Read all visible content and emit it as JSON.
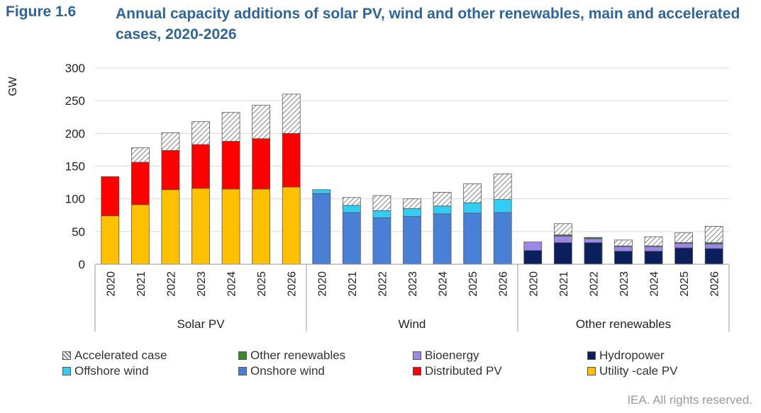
{
  "figure": {
    "label": "Figure 1.6",
    "title": "Annual capacity additions of solar PV, wind and other renewables, main and accelerated cases, 2020-2026"
  },
  "credit": "IEA. All rights reserved.",
  "colors": {
    "utility_pv": "#ffc000",
    "distributed_pv": "#ff0000",
    "onshore_wind": "#4a7fd6",
    "offshore_wind": "#33ccf2",
    "hydropower": "#0b1f5c",
    "bioenergy": "#9f87e8",
    "other_renewables": "#3a8a2a",
    "accelerated": "#d9d9d9"
  },
  "legend": [
    {
      "name": "Accelerated case",
      "color_key": "accelerated",
      "hatched": true
    },
    {
      "name": "Other renewables",
      "color_key": "other_renewables"
    },
    {
      "name": "Bioenergy",
      "color_key": "bioenergy"
    },
    {
      "name": "Hydropower",
      "color_key": "hydropower"
    },
    {
      "name": "Offshore wind",
      "color_key": "offshore_wind"
    },
    {
      "name": "Onshore wind",
      "color_key": "onshore_wind"
    },
    {
      "name": "Distributed PV",
      "color_key": "distributed_pv"
    },
    {
      "name": "Utility -cale PV",
      "color_key": "utility_pv"
    }
  ],
  "chart_data": {
    "type": "bar",
    "stacked": true,
    "ylabel": "GW",
    "ylim": [
      0,
      300
    ],
    "yticks": [
      0,
      50,
      100,
      150,
      200,
      250,
      300
    ],
    "grid": true,
    "legend_position": "bottom",
    "groups": [
      {
        "name": "Solar PV",
        "categories": [
          "2020",
          "2021",
          "2022",
          "2023",
          "2024",
          "2025",
          "2026"
        ],
        "series": [
          {
            "name": "Utility -cale PV",
            "color_key": "utility_pv",
            "values": [
              74,
              91,
              114,
              116,
              115,
              115,
              118
            ]
          },
          {
            "name": "Distributed PV",
            "color_key": "distributed_pv",
            "values": [
              60,
              65,
              60,
              67,
              73,
              77,
              82
            ]
          },
          {
            "name": "Accelerated case",
            "color_key": "accelerated",
            "hatched": true,
            "values": [
              0,
              22,
              27,
              35,
              44,
              51,
              60
            ]
          }
        ]
      },
      {
        "name": "Wind",
        "categories": [
          "2020",
          "2021",
          "2022",
          "2023",
          "2024",
          "2025",
          "2026"
        ],
        "series": [
          {
            "name": "Onshore wind",
            "color_key": "onshore_wind",
            "values": [
              108,
              79,
              71,
              73,
              77,
              78,
              79
            ]
          },
          {
            "name": "Offshore wind",
            "color_key": "offshore_wind",
            "values": [
              6,
              11,
              11,
              12,
              12,
              16,
              20
            ]
          },
          {
            "name": "Accelerated case",
            "color_key": "accelerated",
            "hatched": true,
            "values": [
              0,
              12,
              23,
              15,
              21,
              29,
              39
            ]
          }
        ]
      },
      {
        "name": "Other renewables",
        "categories": [
          "2020",
          "2021",
          "2022",
          "2023",
          "2024",
          "2025",
          "2026"
        ],
        "series": [
          {
            "name": "Hydropower",
            "color_key": "hydropower",
            "values": [
              21,
              33,
              33,
              20,
              20,
              25,
              24
            ]
          },
          {
            "name": "Bioenergy",
            "color_key": "bioenergy",
            "values": [
              13,
              10,
              6,
              7,
              7,
              7,
              7
            ]
          },
          {
            "name": "Other renewables",
            "color_key": "other_renewables",
            "values": [
              0,
              2,
              2,
              1,
              1,
              1,
              2
            ]
          },
          {
            "name": "Accelerated case",
            "color_key": "accelerated",
            "hatched": true,
            "values": [
              0,
              17,
              0,
              9,
              14,
              15,
              25
            ]
          }
        ]
      }
    ]
  }
}
